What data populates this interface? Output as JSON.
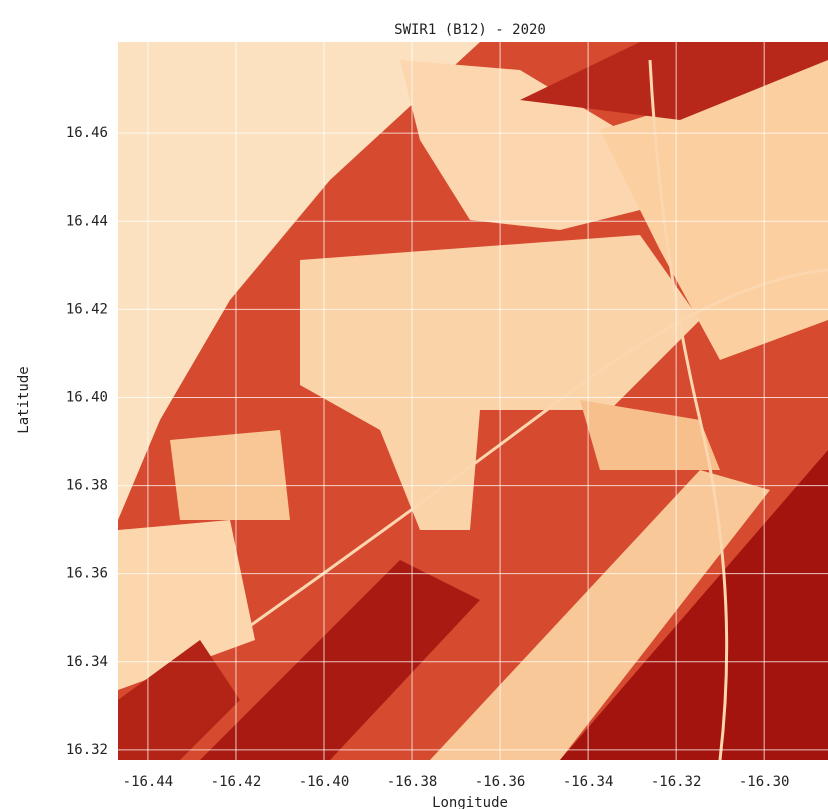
{
  "chart_data": {
    "type": "raster",
    "title": "SWIR1 (B12) - 2020",
    "xlabel": "Longitude",
    "ylabel": "Latitude",
    "xlim": [
      -16.4468,
      -16.2855
    ],
    "ylim": [
      16.3177,
      16.4807
    ],
    "xticks": [
      -16.44,
      -16.42,
      {
        "value": -16.4,
        "label": "-16.40"
      },
      -16.38,
      -16.36,
      -16.34,
      -16.32,
      {
        "value": -16.3,
        "label": "-16.30"
      }
    ],
    "yticks": [
      16.32,
      16.34,
      16.36,
      16.38,
      {
        "value": 16.4,
        "label": "16.40"
      },
      16.42,
      16.44,
      16.46
    ],
    "grid": true
  }
}
